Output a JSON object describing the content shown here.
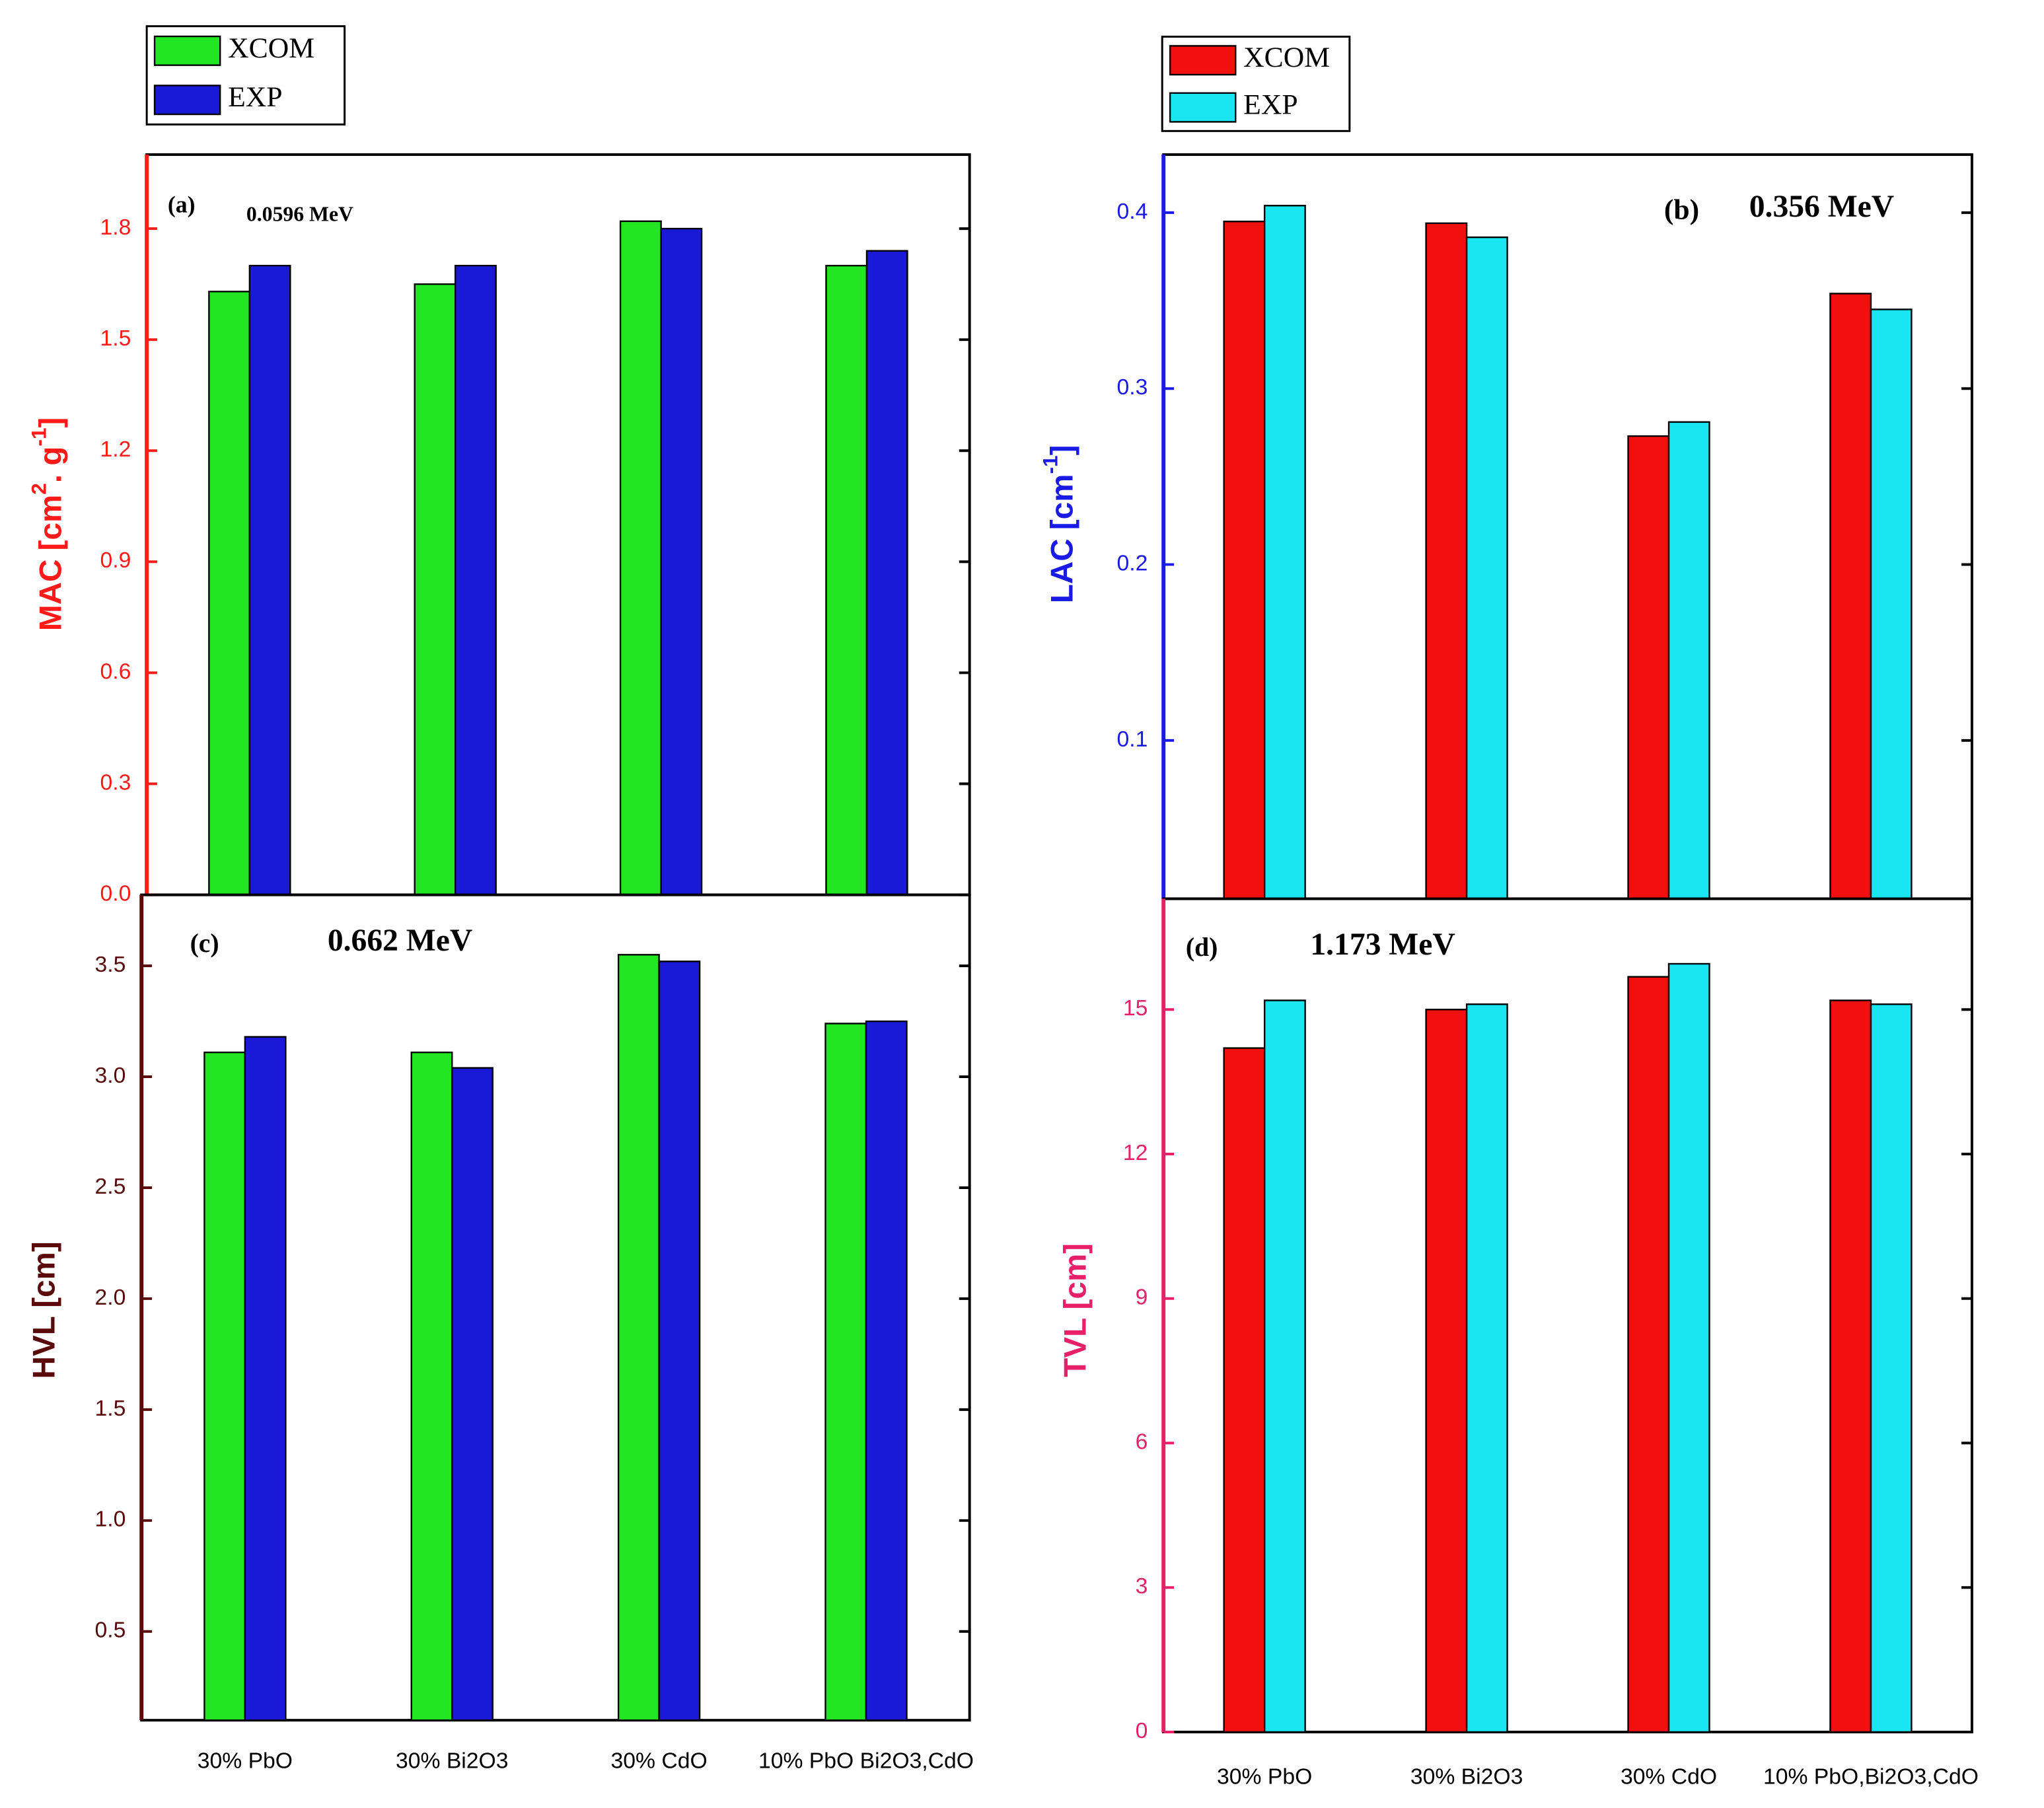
{
  "chart_data": [
    {
      "type": "bar",
      "panel": "(a)",
      "annotation": "0.0596 MeV",
      "ylabel": [
        "MAC [cm",
        "2",
        ". g",
        "-1",
        "]"
      ],
      "axis_color": "#ff1a1a",
      "categories": [
        null,
        null,
        null,
        null
      ],
      "series": [
        {
          "name": "XCOM",
          "color": "#22e622",
          "values": [
            1.63,
            1.65,
            1.82,
            1.7
          ]
        },
        {
          "name": "EXP",
          "color": "#1a1ad6",
          "values": [
            1.7,
            1.7,
            1.8,
            1.74
          ]
        }
      ],
      "ylim": [
        0,
        2.0
      ],
      "yticks": [
        {
          "value": 0,
          "label": "0.0"
        },
        0.3,
        0.6,
        0.9,
        1.2,
        1.5,
        1.8
      ],
      "legend": "upper-left"
    },
    {
      "type": "bar",
      "panel": "(b)",
      "annotation": "0.356 MeV",
      "ylabel": [
        "LAC [cm",
        "-1",
        "]"
      ],
      "axis_color": "#1a1ae6",
      "categories": [
        null,
        null,
        null,
        null
      ],
      "series": [
        {
          "name": "XCOM",
          "color": "#f01010",
          "values": [
            0.395,
            0.394,
            0.273,
            0.354
          ]
        },
        {
          "name": "EXP",
          "color": "#19e6f0",
          "values": [
            0.404,
            0.386,
            0.281,
            0.345
          ]
        }
      ],
      "ylim": [
        0.01,
        0.433
      ],
      "yticks": [
        0.1,
        0.2,
        0.3,
        0.4
      ],
      "legend": "upper-left"
    },
    {
      "type": "bar",
      "panel": "(c)",
      "annotation": "0.662 MeV",
      "ylabel": [
        "HVL  [cm]"
      ],
      "axis_color": "#5a0a0a",
      "categories": [
        "30% PbO",
        "30% Bi2O3",
        "30% CdO",
        "10% PbO Bi2O3,CdO"
      ],
      "series": [
        {
          "name": "XCOM",
          "color": "#22e622",
          "values": [
            3.11,
            3.11,
            3.55,
            3.24
          ]
        },
        {
          "name": "EXP",
          "color": "#1a1ad6",
          "values": [
            3.18,
            3.04,
            3.52,
            3.25
          ]
        }
      ],
      "ylim": [
        0.1,
        3.82
      ],
      "yticks": [
        0.5,
        {
          "value": 1,
          "label": "1.0"
        },
        1.5,
        {
          "value": 2,
          "label": "2.0"
        },
        2.5,
        {
          "value": 3,
          "label": "3.0"
        },
        3.5
      ]
    },
    {
      "type": "bar",
      "panel": "(d)",
      "annotation": "1.173 MeV",
      "ylabel": [
        "TVL [cm]"
      ],
      "axis_color": "#e8206a",
      "categories": [
        "30% PbO",
        "30% Bi2O3",
        "30% CdO",
        "10% PbO,Bi2O3,CdO"
      ],
      "series": [
        {
          "name": "XCOM",
          "color": "#f01010",
          "values": [
            14.2,
            15.0,
            15.68,
            15.19
          ]
        },
        {
          "name": "EXP",
          "color": "#19e6f0",
          "values": [
            15.19,
            15.11,
            15.95,
            15.11
          ]
        }
      ],
      "ylim": [
        0,
        17.3
      ],
      "yticks": [
        0,
        3,
        6,
        9,
        12,
        15
      ]
    }
  ]
}
